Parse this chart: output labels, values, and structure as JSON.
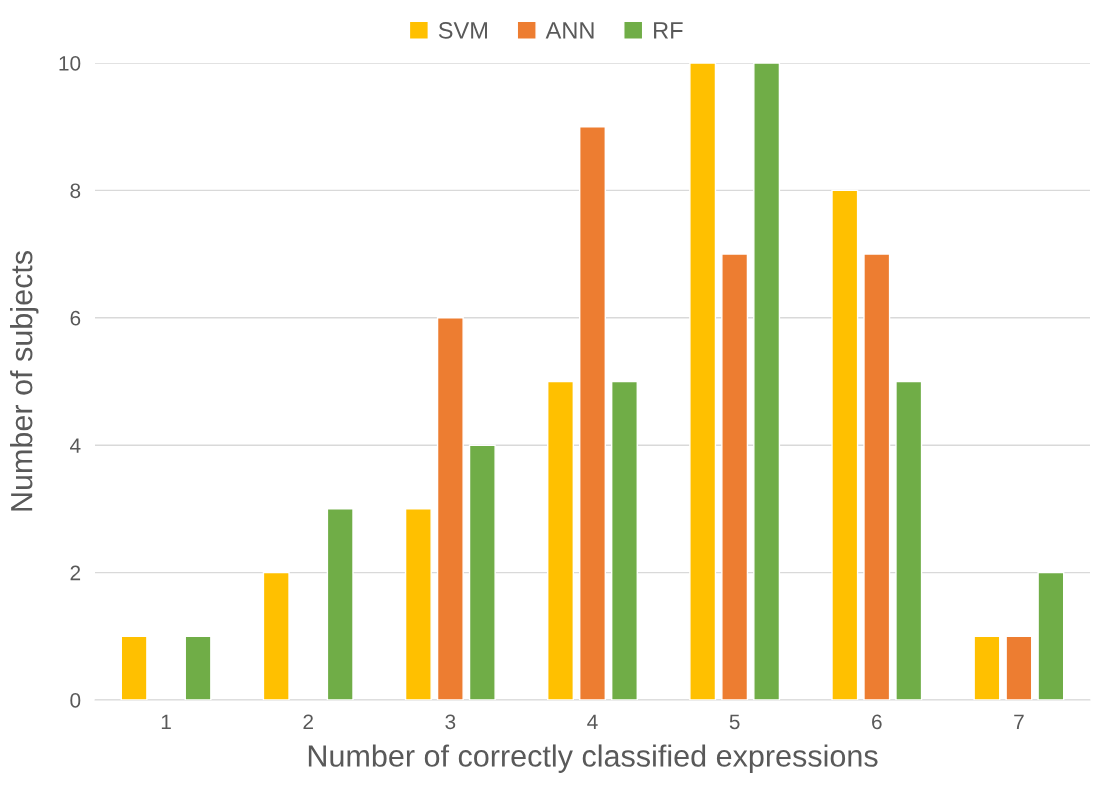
{
  "chart_data": {
    "type": "bar",
    "xlabel": "Number of correctly classified expressions",
    "ylabel": "Number of subjects",
    "categories": [
      "1",
      "2",
      "3",
      "4",
      "5",
      "6",
      "7"
    ],
    "series": [
      {
        "name": "SVM",
        "color": "#ffc000",
        "values": [
          1,
          2,
          3,
          5,
          10,
          8,
          1
        ]
      },
      {
        "name": "ANN",
        "color": "#ed7d31",
        "values": [
          0,
          0,
          6,
          9,
          7,
          7,
          1
        ]
      },
      {
        "name": "RF",
        "color": "#70ad47",
        "values": [
          1,
          3,
          4,
          5,
          10,
          5,
          2
        ]
      }
    ],
    "ylim": [
      0,
      10
    ],
    "yticks": [
      0,
      2,
      4,
      6,
      8,
      10
    ],
    "grid": "y",
    "legend": "top"
  }
}
